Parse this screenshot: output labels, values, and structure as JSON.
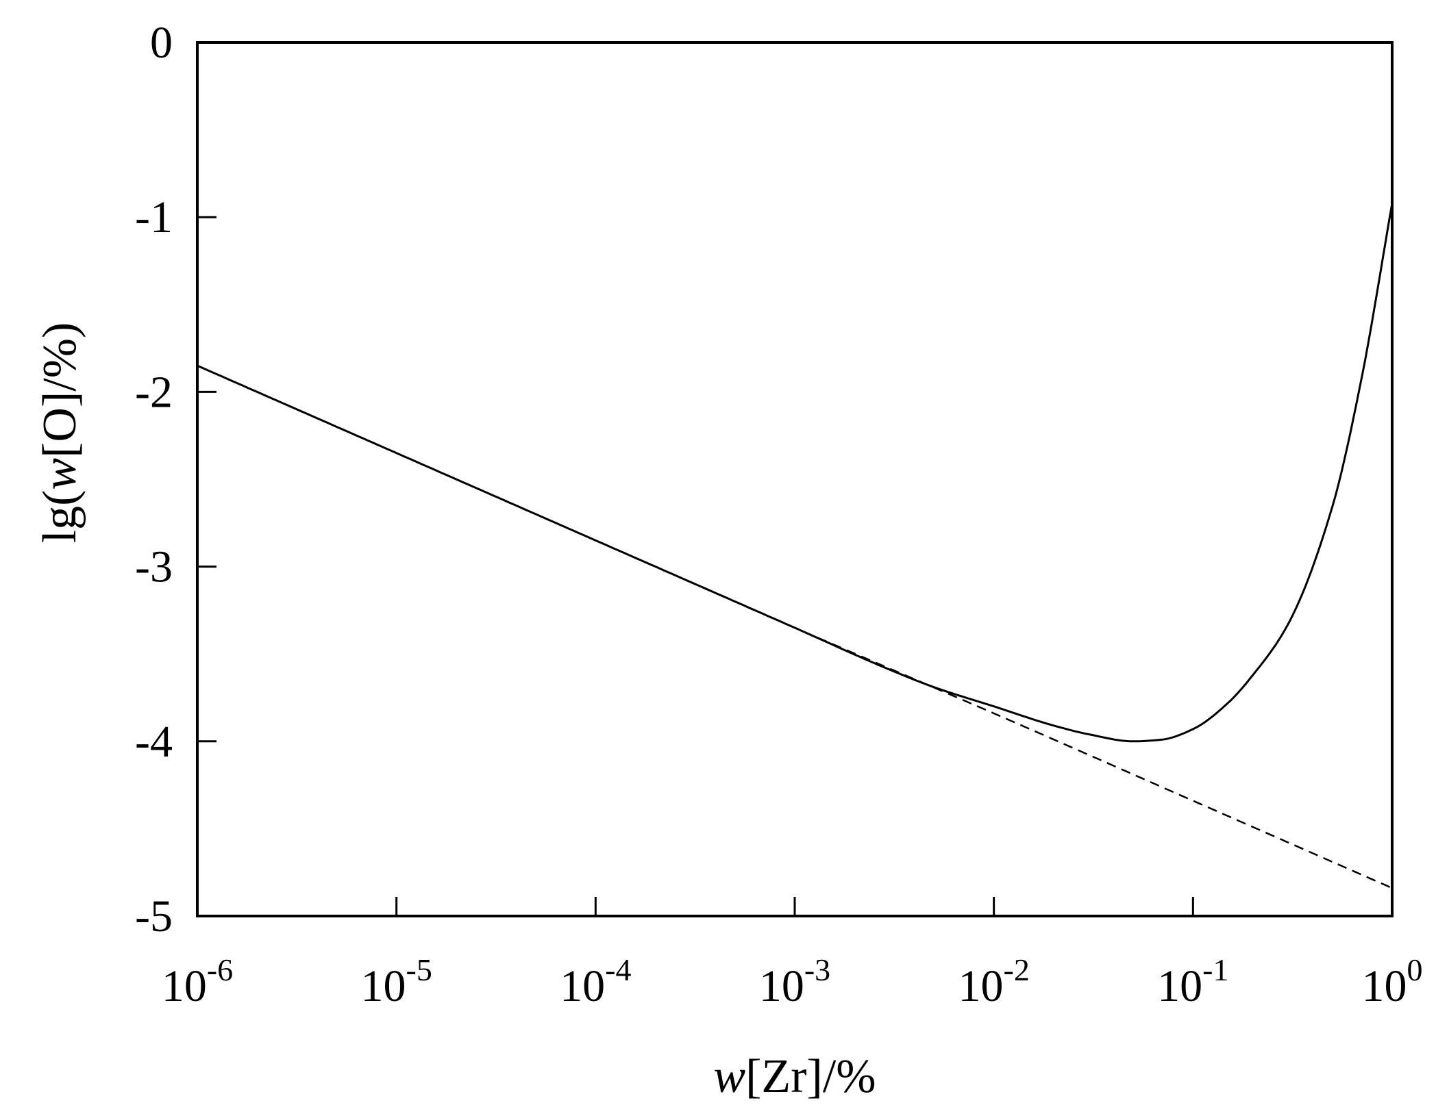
{
  "chart_data": {
    "type": "line",
    "title": "",
    "x_scale": "log",
    "xlim": [
      1e-06,
      1
    ],
    "ylim": [
      -5,
      0
    ],
    "grid": false,
    "legend": "none",
    "xlabel": {
      "var": "w",
      "rest": "[Zr]/%"
    },
    "ylabel": {
      "prefix": "lg(",
      "var": "w",
      "rest": "[O]/%)"
    },
    "x_ticks": [
      {
        "value": 1e-06,
        "base": "10",
        "exp": "-6"
      },
      {
        "value": 1e-05,
        "base": "10",
        "exp": "-5"
      },
      {
        "value": 0.0001,
        "base": "10",
        "exp": "-4"
      },
      {
        "value": 0.001,
        "base": "10",
        "exp": "-3"
      },
      {
        "value": 0.01,
        "base": "10",
        "exp": "-2"
      },
      {
        "value": 0.1,
        "base": "10",
        "exp": "-1"
      },
      {
        "value": 1,
        "base": "10",
        "exp": "0"
      }
    ],
    "y_ticks": [
      {
        "value": 0,
        "label": "0"
      },
      {
        "value": -1,
        "label": "-1"
      },
      {
        "value": -2,
        "label": "-2"
      },
      {
        "value": -3,
        "label": "-3"
      },
      {
        "value": -4,
        "label": "-4"
      },
      {
        "value": -5,
        "label": "-5"
      }
    ],
    "series": [
      {
        "style": "solid",
        "color": "#000000",
        "x": [
          1e-06,
          1e-05,
          0.0001,
          0.001,
          0.003,
          0.005,
          0.01,
          0.02,
          0.03,
          0.05,
          0.07,
          0.1,
          0.15,
          0.2,
          0.3,
          0.5,
          0.7,
          1
        ],
        "y": [
          -1.85,
          -2.35,
          -2.85,
          -3.35,
          -3.59,
          -3.69,
          -3.8,
          -3.91,
          -3.96,
          -4.0,
          -3.99,
          -3.93,
          -3.78,
          -3.62,
          -3.33,
          -2.66,
          -1.93,
          -0.92
        ]
      },
      {
        "style": "dashed",
        "color": "#000000",
        "x": [
          1e-06,
          1e-05,
          0.0001,
          0.001,
          0.01,
          0.1,
          1
        ],
        "y": [
          -1.85,
          -2.35,
          -2.85,
          -3.35,
          -3.84,
          -4.34,
          -4.84
        ]
      }
    ]
  }
}
